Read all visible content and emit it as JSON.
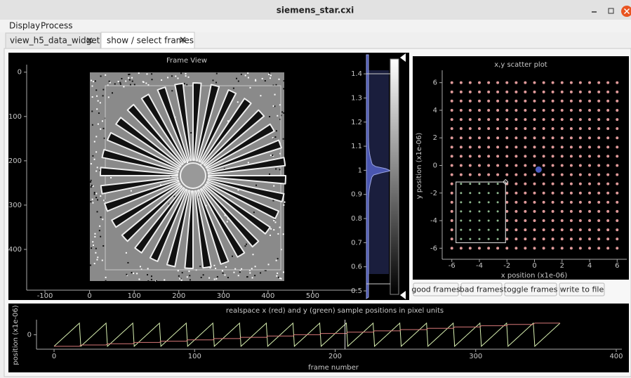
{
  "window": {
    "title": "siemens_star.cxi"
  },
  "menu": [
    "Display",
    "Process"
  ],
  "tabs": [
    "view_h5_data_widget",
    "show / select frames"
  ],
  "frame_view": {
    "title": "Frame View",
    "xlim": [
      -141,
      600
    ],
    "ylim": [
      -17,
      492
    ],
    "y_inverted": true,
    "xticks": [
      -100,
      0,
      100,
      200,
      300,
      400,
      500
    ],
    "yticks": [
      0,
      100,
      200,
      300,
      400
    ]
  },
  "colorbar": {
    "ylim": [
      0.468,
      1.479
    ],
    "yticks": [
      0.5,
      0.6,
      0.7,
      0.8,
      0.9,
      1,
      1.1,
      1.2,
      1.3,
      1.4
    ],
    "color": "#4a56b0"
  },
  "scatter": {
    "title": "x,y scatter plot",
    "xlabel": "x position (x1e-06)",
    "ylabel": "y position (x1e-06)",
    "xlim": [
      -6.7,
      6.7
    ],
    "ylim": [
      -6.8,
      6.9
    ],
    "xticks": [
      -6,
      -4,
      -2,
      0,
      2,
      4,
      6
    ],
    "yticks": [
      -6,
      -4,
      -2,
      0,
      2,
      4,
      6
    ],
    "x_grid": [
      -6,
      -5.33,
      -4.67,
      -4,
      -3.33,
      -2.67,
      -2,
      -1.33,
      -0.67,
      0,
      0.67,
      1.33,
      2,
      2.67,
      3.33,
      4,
      4.67,
      5.33,
      6
    ],
    "y_grid": [
      -6,
      -5.33,
      -4.67,
      -4,
      -3.33,
      -2.67,
      -2,
      -1.33,
      -0.67,
      0,
      0.67,
      1.33,
      2,
      2.67,
      3.33,
      4,
      4.67,
      5.33,
      6
    ],
    "color": "#e09a9a",
    "selected_color": "#8fb88f",
    "selection": {
      "x": [
        -5.7,
        -2.1
      ],
      "y": [
        -5.6,
        -1.2
      ]
    },
    "highlight": {
      "x": 0.3,
      "y": -0.3,
      "color": "#4a5ac0"
    }
  },
  "buttons": [
    "good frames",
    "bad frames",
    "toggle frames",
    "write to file"
  ],
  "positions": {
    "title": "realspace x (red) and y (green) sample positions in pixel units",
    "xlabel": "frame number",
    "ylabel": "position (x1e-06)",
    "xlim": [
      -12.5,
      404
    ],
    "ylim": [
      -7.5,
      7.8
    ],
    "xticks": [
      0,
      100,
      200,
      300,
      400
    ],
    "yticks": [
      0
    ],
    "x_color": "#d87878",
    "y_color": "#d8f0b0",
    "cursor": 207
  }
}
